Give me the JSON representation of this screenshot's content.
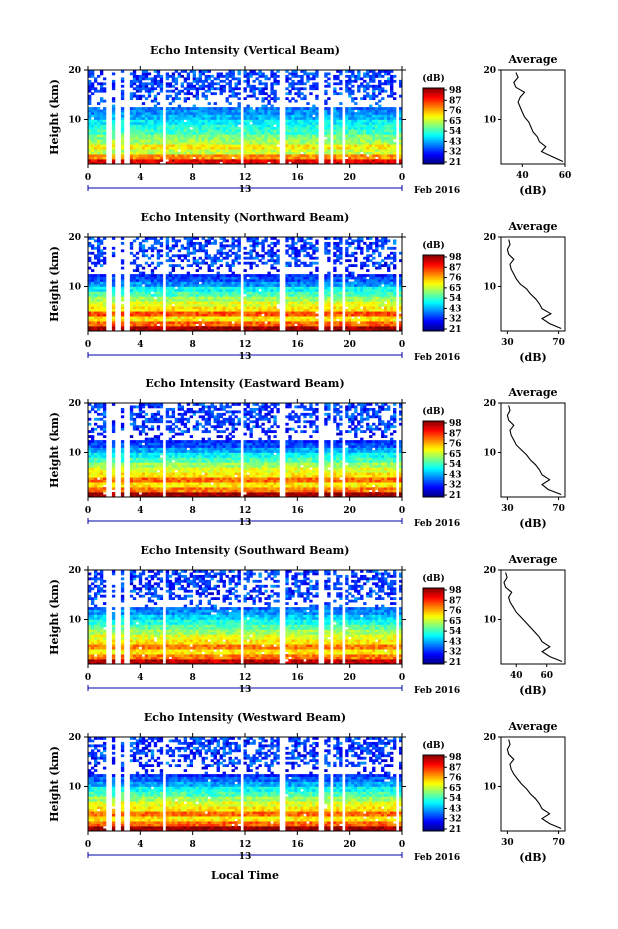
{
  "figure": {
    "date_label": "Feb 2016",
    "xlabel": "Local Time",
    "colorbar_unit": "(dB)",
    "profile_title": "Average",
    "profile_xlabel": "(dB)"
  },
  "chart_data": [
    {
      "type": "heatmap",
      "title": "Echo Intensity (Vertical Beam)",
      "ylabel": "Height (km)",
      "xlabel": "Local Time",
      "x_ticks": [
        "0",
        "4",
        "8",
        "12",
        "16",
        "20",
        "0"
      ],
      "x_range": [
        0,
        24
      ],
      "y_ticks": [
        "20",
        "10"
      ],
      "y_range": [
        1,
        20
      ],
      "date_marker": "13",
      "colorbar": {
        "unit": "(dB)",
        "ticks": [
          "98",
          "87",
          "76",
          "65",
          "54",
          "43",
          "32",
          "21"
        ],
        "range": [
          21,
          98
        ]
      },
      "data_gaps_hours": [
        1.6,
        2.3,
        3.0,
        5.8,
        11.8,
        14.9,
        17.8,
        18.6,
        19.5,
        23.6
      ],
      "profile": {
        "title": "Average",
        "xlabel": "(dB)",
        "x_ticks": [
          "40",
          "60"
        ],
        "x_range": [
          30,
          60
        ],
        "y_ticks": [
          "20",
          "10"
        ],
        "heights_km": [
          1.5,
          2.5,
          3.5,
          4.5,
          5.5,
          6.5,
          7.5,
          8.5,
          9.5,
          10.5,
          11.5,
          12.5,
          13.5,
          14.5,
          15.5,
          16.5,
          17.5,
          18.5,
          19.5
        ],
        "values_db": [
          59,
          54,
          49,
          51,
          48,
          47,
          45,
          44,
          43,
          41,
          40,
          39,
          38,
          39,
          41,
          37,
          36,
          38,
          37
        ]
      }
    },
    {
      "type": "heatmap",
      "title": "Echo Intensity (Northward Beam)",
      "ylabel": "Height (km)",
      "xlabel": "Local Time",
      "x_ticks": [
        "0",
        "4",
        "8",
        "12",
        "16",
        "20",
        "0"
      ],
      "x_range": [
        0,
        24
      ],
      "y_ticks": [
        "20",
        "10"
      ],
      "y_range": [
        1,
        20
      ],
      "date_marker": "13",
      "colorbar": {
        "unit": "(dB)",
        "ticks": [
          "98",
          "87",
          "76",
          "65",
          "54",
          "43",
          "32",
          "21"
        ],
        "range": [
          21,
          98
        ]
      },
      "data_gaps_hours": [
        1.6,
        2.3,
        3.0,
        5.8,
        11.8,
        14.9,
        17.8,
        18.6,
        19.5,
        23.6
      ],
      "profile": {
        "title": "Average",
        "xlabel": "(dB)",
        "x_ticks": [
          "30",
          "70"
        ],
        "x_range": [
          25,
          75
        ],
        "y_ticks": [
          "20",
          "10"
        ],
        "heights_km": [
          1.5,
          2.5,
          3.5,
          4.5,
          5.5,
          6.5,
          7.5,
          8.5,
          9.5,
          10.5,
          11.5,
          12.5,
          13.5,
          14.5,
          15.5,
          16.5,
          17.5,
          18.5,
          19.5
        ],
        "values_db": [
          72,
          63,
          57,
          64,
          57,
          55,
          52,
          48,
          45,
          40,
          37,
          35,
          33,
          32,
          35,
          31,
          30,
          32,
          31
        ]
      }
    },
    {
      "type": "heatmap",
      "title": "Echo Intensity (Eastward Beam)",
      "ylabel": "Height (km)",
      "xlabel": "Local Time",
      "x_ticks": [
        "0",
        "4",
        "8",
        "12",
        "16",
        "20",
        "0"
      ],
      "x_range": [
        0,
        24
      ],
      "y_ticks": [
        "20",
        "10"
      ],
      "y_range": [
        1,
        20
      ],
      "date_marker": "13",
      "colorbar": {
        "unit": "(dB)",
        "ticks": [
          "98",
          "87",
          "76",
          "65",
          "54",
          "43",
          "32",
          "21"
        ],
        "range": [
          21,
          98
        ]
      },
      "data_gaps_hours": [
        1.6,
        2.3,
        3.0,
        5.8,
        11.8,
        14.9,
        17.8,
        18.6,
        19.5,
        23.6
      ],
      "profile": {
        "title": "Average",
        "xlabel": "(dB)",
        "x_ticks": [
          "30",
          "70"
        ],
        "x_range": [
          25,
          75
        ],
        "y_ticks": [
          "20",
          "10"
        ],
        "heights_km": [
          1.5,
          2.5,
          3.5,
          4.5,
          5.5,
          6.5,
          7.5,
          8.5,
          9.5,
          10.5,
          11.5,
          12.5,
          13.5,
          14.5,
          15.5,
          16.5,
          17.5,
          18.5,
          19.5
        ],
        "values_db": [
          72,
          62,
          57,
          63,
          57,
          55,
          52,
          48,
          45,
          41,
          37,
          35,
          33,
          32,
          35,
          31,
          30,
          32,
          31
        ]
      }
    },
    {
      "type": "heatmap",
      "title": "Echo Intensity (Southward Beam)",
      "ylabel": "Height (km)",
      "xlabel": "Local Time",
      "x_ticks": [
        "0",
        "4",
        "8",
        "12",
        "16",
        "20",
        "0"
      ],
      "x_range": [
        0,
        24
      ],
      "y_ticks": [
        "20",
        "10"
      ],
      "y_range": [
        1,
        20
      ],
      "date_marker": "13",
      "colorbar": {
        "unit": "(dB)",
        "ticks": [
          "98",
          "87",
          "76",
          "65",
          "54",
          "43",
          "32",
          "21"
        ],
        "range": [
          21,
          98
        ]
      },
      "data_gaps_hours": [
        1.6,
        2.3,
        3.0,
        5.8,
        11.8,
        14.9,
        17.8,
        18.6,
        19.5,
        23.6
      ],
      "profile": {
        "title": "Average",
        "xlabel": "(dB)",
        "x_ticks": [
          "40",
          "60"
        ],
        "x_range": [
          30,
          72
        ],
        "y_ticks": [
          "20",
          "10"
        ],
        "heights_km": [
          1.5,
          2.5,
          3.5,
          4.5,
          5.5,
          6.5,
          7.5,
          8.5,
          9.5,
          10.5,
          11.5,
          12.5,
          13.5,
          14.5,
          15.5,
          16.5,
          17.5,
          18.5,
          19.5
        ],
        "values_db": [
          70,
          62,
          57,
          62,
          57,
          55,
          52,
          49,
          46,
          43,
          40,
          38,
          36,
          35,
          37,
          33,
          32,
          34,
          33
        ]
      }
    },
    {
      "type": "heatmap",
      "title": "Echo Intensity (Westward Beam)",
      "ylabel": "Height (km)",
      "xlabel": "Local Time",
      "x_ticks": [
        "0",
        "4",
        "8",
        "12",
        "16",
        "20",
        "0"
      ],
      "x_range": [
        0,
        24
      ],
      "y_ticks": [
        "20",
        "10"
      ],
      "y_range": [
        1,
        20
      ],
      "date_marker": "13",
      "colorbar": {
        "unit": "(dB)",
        "ticks": [
          "98",
          "87",
          "76",
          "65",
          "54",
          "43",
          "32",
          "21"
        ],
        "range": [
          21,
          98
        ]
      },
      "data_gaps_hours": [
        1.6,
        2.3,
        3.0,
        5.8,
        11.8,
        14.9,
        17.8,
        18.6,
        19.5,
        23.6
      ],
      "profile": {
        "title": "Average",
        "xlabel": "(dB)",
        "x_ticks": [
          "30",
          "70"
        ],
        "x_range": [
          25,
          75
        ],
        "y_ticks": [
          "20",
          "10"
        ],
        "heights_km": [
          1.5,
          2.5,
          3.5,
          4.5,
          5.5,
          6.5,
          7.5,
          8.5,
          9.5,
          10.5,
          11.5,
          12.5,
          13.5,
          14.5,
          15.5,
          16.5,
          17.5,
          18.5,
          19.5
        ],
        "values_db": [
          72,
          63,
          57,
          63,
          57,
          55,
          52,
          48,
          45,
          41,
          38,
          35,
          33,
          32,
          35,
          31,
          30,
          32,
          31
        ]
      }
    }
  ]
}
